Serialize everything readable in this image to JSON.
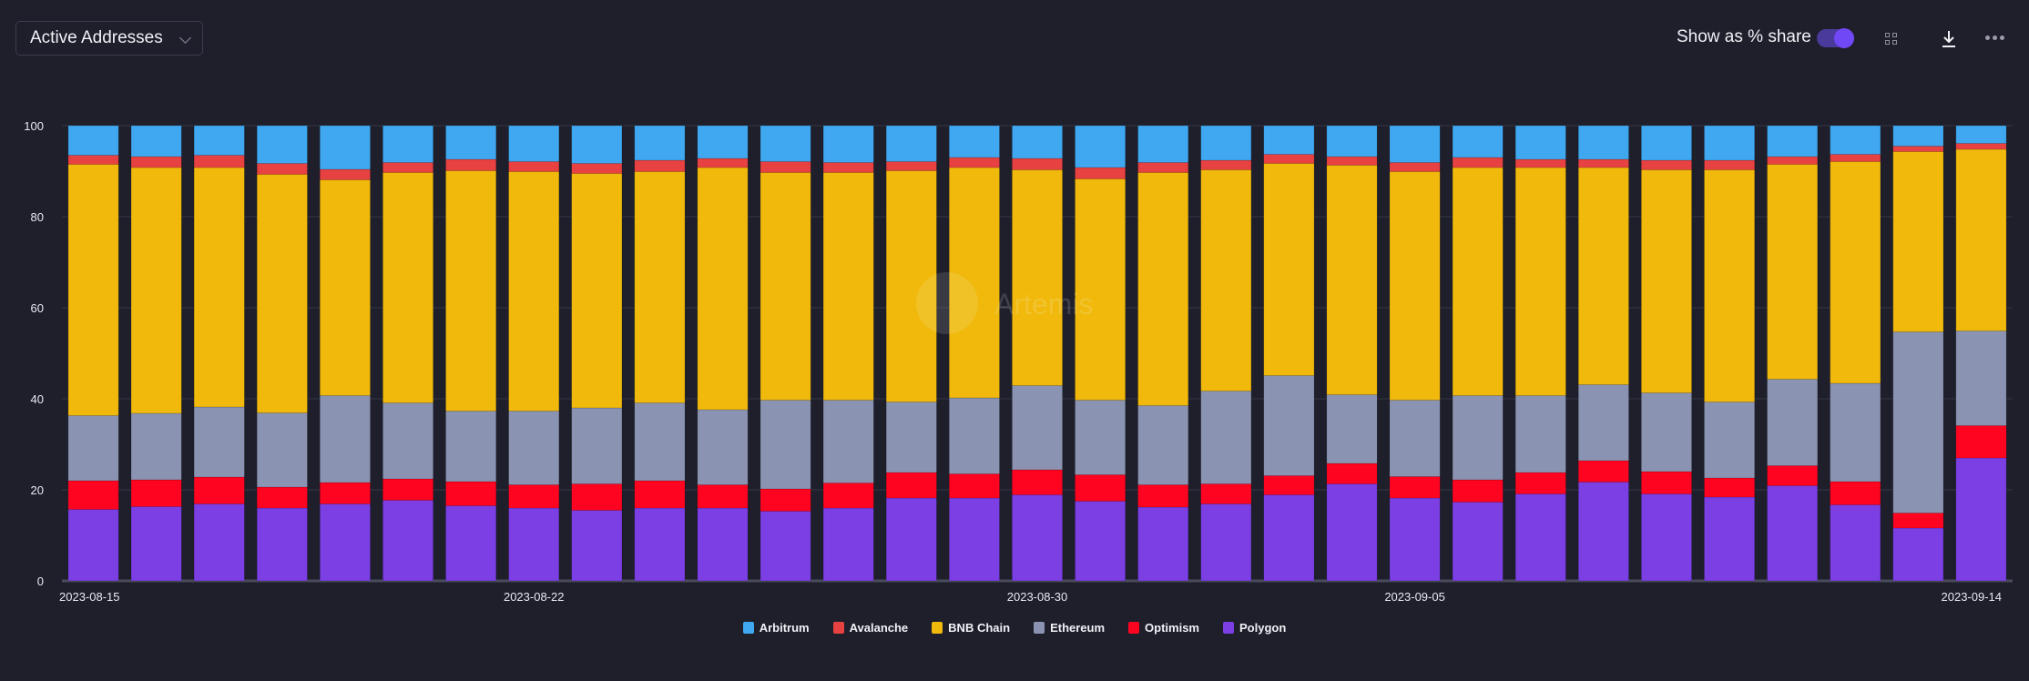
{
  "header": {
    "metric_dropdown": "Active Addresses",
    "share_toggle_label": "Show as % share",
    "share_toggle_on": true
  },
  "icons": {
    "grid": "grid-icon",
    "download": "download-icon",
    "more": "more-icon",
    "dropdown": "chevron-down-icon"
  },
  "watermark": "Artemis",
  "chart_data": {
    "type": "bar",
    "stacked": true,
    "percent_share": true,
    "title": "Active Addresses",
    "xlabel": "",
    "ylabel": "",
    "ylim": [
      0,
      100
    ],
    "yticks": [
      0,
      20,
      40,
      60,
      80,
      100
    ],
    "xtick_labels": [
      "2023-08-15",
      "2023-08-22",
      "2023-08-30",
      "2023-09-05",
      "2023-09-14"
    ],
    "grid": true,
    "legend_position": "bottom-center",
    "categories": [
      "2023-08-15",
      "2023-08-16",
      "2023-08-17",
      "2023-08-18",
      "2023-08-19",
      "2023-08-20",
      "2023-08-21",
      "2023-08-22",
      "2023-08-23",
      "2023-08-24",
      "2023-08-25",
      "2023-08-26",
      "2023-08-27",
      "2023-08-28",
      "2023-08-29",
      "2023-08-30",
      "2023-08-31",
      "2023-09-01",
      "2023-09-02",
      "2023-09-03",
      "2023-09-04",
      "2023-09-05",
      "2023-09-06",
      "2023-09-07",
      "2023-09-08",
      "2023-09-09",
      "2023-09-10",
      "2023-09-11",
      "2023-09-12",
      "2023-09-13",
      "2023-09-14"
    ],
    "series": [
      {
        "name": "Polygon",
        "color": "#7b3fe4",
        "values": [
          15.7,
          16.3,
          16.9,
          16.0,
          16.9,
          17.7,
          16.5,
          16.0,
          15.5,
          16.0,
          16.0,
          15.3,
          16.0,
          18.2,
          18.2,
          18.9,
          17.5,
          16.2,
          16.9,
          18.9,
          21.3,
          18.2,
          17.3,
          19.1,
          21.7,
          19.1,
          18.4,
          20.9,
          16.7,
          11.6,
          27.0
        ]
      },
      {
        "name": "Optimism",
        "color": "#ff0420",
        "values": [
          6.3,
          5.9,
          5.9,
          4.6,
          4.7,
          4.7,
          5.3,
          5.1,
          5.8,
          6.0,
          5.1,
          4.9,
          5.5,
          5.6,
          5.3,
          5.5,
          5.8,
          4.9,
          4.4,
          4.2,
          4.5,
          4.7,
          4.9,
          4.7,
          4.7,
          4.9,
          4.2,
          4.4,
          5.1,
          3.3,
          7.1
        ]
      },
      {
        "name": "Ethereum",
        "color": "#8a94b2",
        "values": [
          14.3,
          14.6,
          15.4,
          16.3,
          19.1,
          16.7,
          15.5,
          16.2,
          16.7,
          17.1,
          16.5,
          19.5,
          18.2,
          15.5,
          16.7,
          18.5,
          16.4,
          17.4,
          20.4,
          22.0,
          15.1,
          16.8,
          18.5,
          16.9,
          16.7,
          17.3,
          16.7,
          19.0,
          21.6,
          39.8,
          20.8
        ]
      },
      {
        "name": "BNB Chain",
        "color": "#f0b90b",
        "values": [
          55.2,
          54.0,
          52.6,
          52.4,
          47.4,
          50.6,
          52.8,
          52.6,
          51.5,
          50.8,
          53.2,
          50.0,
          50.0,
          50.8,
          50.6,
          47.4,
          48.6,
          51.2,
          48.6,
          46.6,
          50.4,
          50.2,
          50.1,
          50.1,
          47.7,
          49.0,
          51.0,
          47.2,
          48.7,
          39.6,
          39.9
        ]
      },
      {
        "name": "Avalanche",
        "color": "#e84142",
        "values": [
          2.0,
          2.4,
          2.7,
          2.4,
          2.3,
          2.2,
          2.5,
          2.2,
          2.2,
          2.5,
          2.0,
          2.4,
          2.2,
          2.0,
          2.2,
          2.5,
          2.5,
          2.2,
          2.1,
          2.0,
          1.9,
          2.0,
          2.2,
          1.8,
          1.8,
          2.1,
          2.1,
          1.7,
          1.6,
          1.2,
          1.3
        ]
      },
      {
        "name": "Arbitrum",
        "color": "#3fa8f0",
        "values": [
          6.5,
          6.8,
          6.5,
          8.3,
          9.6,
          8.1,
          7.4,
          7.9,
          8.3,
          7.6,
          7.2,
          7.9,
          8.1,
          7.9,
          7.0,
          7.2,
          9.2,
          8.1,
          7.6,
          6.3,
          6.8,
          8.1,
          7.0,
          7.4,
          7.4,
          7.6,
          7.6,
          6.8,
          6.3,
          4.5,
          3.9
        ]
      }
    ]
  }
}
